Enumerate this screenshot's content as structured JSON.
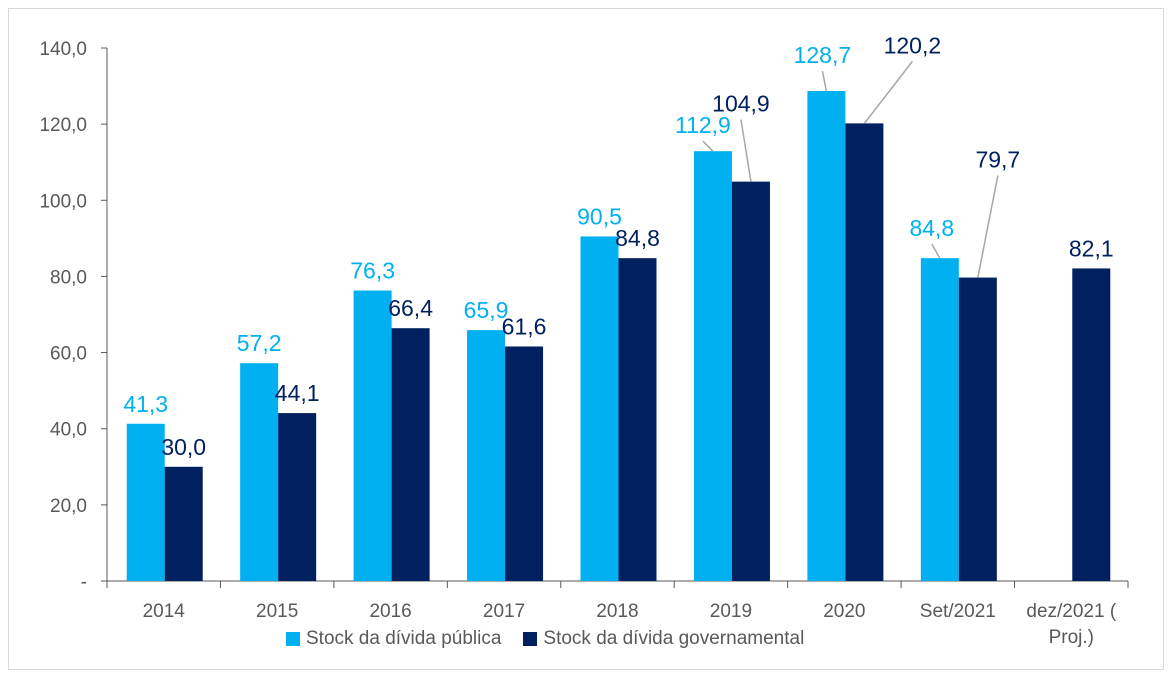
{
  "chart_data": {
    "type": "bar",
    "categories": [
      "2014",
      "2015",
      "2016",
      "2017",
      "2018",
      "2019",
      "2020",
      "Set/2021",
      "dez/2021 ( Proj.)"
    ],
    "category_lines": [
      [
        "2014"
      ],
      [
        "2015"
      ],
      [
        "2016"
      ],
      [
        "2017"
      ],
      [
        "2018"
      ],
      [
        "2019"
      ],
      [
        "2020"
      ],
      [
        "Set/2021"
      ],
      [
        "dez/2021 (",
        "Proj.)"
      ]
    ],
    "series": [
      {
        "name": "Stock da dívida pública",
        "color": "#00b0f0",
        "values": [
          41.3,
          57.2,
          76.3,
          65.9,
          90.5,
          112.9,
          128.7,
          84.8,
          null
        ],
        "labels": [
          "41,3",
          "57,2",
          "76,3",
          "65,9",
          "90,5",
          "112,9",
          "128,7",
          "84,8",
          ""
        ]
      },
      {
        "name": "Stock da dívida governamental",
        "color": "#002060",
        "values": [
          30.0,
          44.1,
          66.4,
          61.6,
          84.8,
          104.9,
          120.2,
          79.7,
          82.1
        ],
        "labels": [
          "30,0",
          "44,1",
          "66,4",
          "61,6",
          "84,8",
          "104,9",
          "120,2",
          "79,7",
          "82,1"
        ]
      }
    ],
    "y_ticks": [
      0,
      20,
      40,
      60,
      80,
      100,
      120,
      140
    ],
    "y_tick_labels": [
      "-",
      "20,0",
      "40,0",
      "60,0",
      "80,0",
      "100,0",
      "120,0",
      "140,0"
    ],
    "ylim": [
      0,
      140
    ],
    "grid": false,
    "legend_position": "bottom"
  }
}
